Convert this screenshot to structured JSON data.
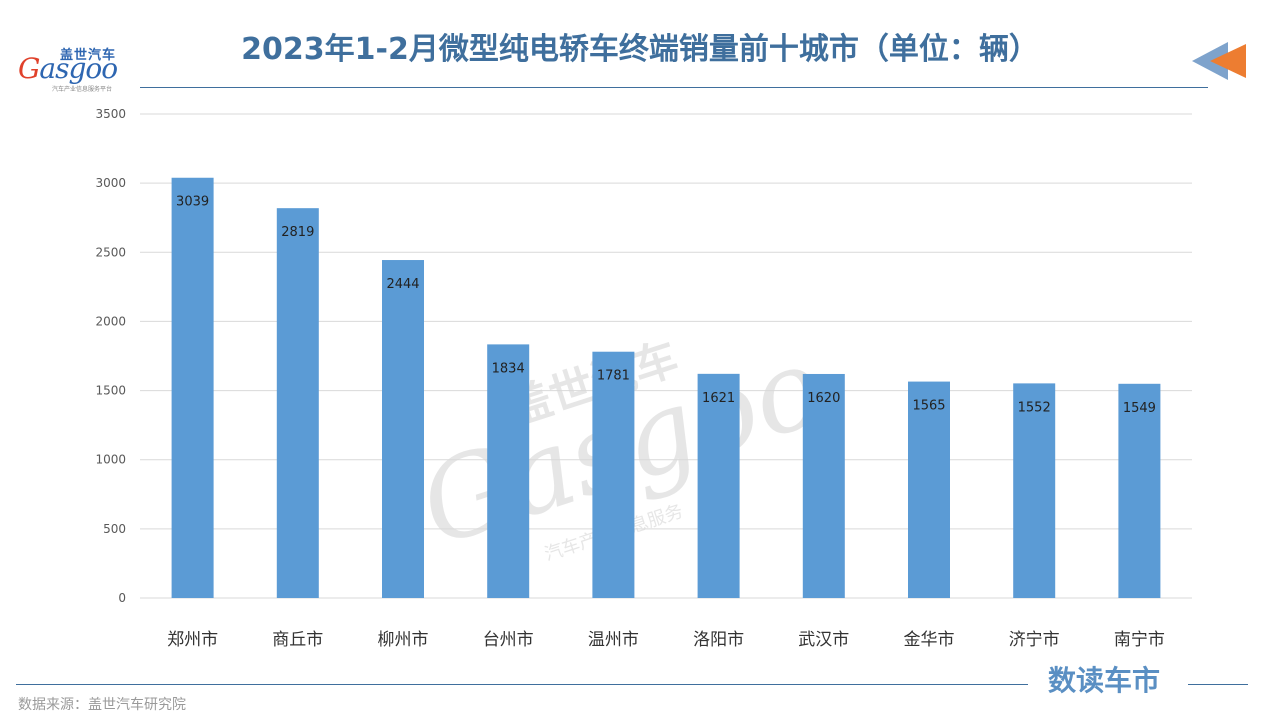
{
  "logo": {
    "name_cn": "盖世汽车",
    "name_en_first": "G",
    "name_en_rest": "asgoo",
    "tagline": "汽车产业信息服务平台"
  },
  "header": {
    "title": "2023年1-2月微型纯电轿车终端销量前十城市（单位：辆）"
  },
  "colors": {
    "bar": "#5b9bd5",
    "title": "#3f6f9d",
    "grid": "#d9d9d9",
    "arrow_blue": "#7ea3cc",
    "arrow_orange": "#ed7d31"
  },
  "watermark": {
    "cn": "盖世汽车",
    "en": "Gasgoo",
    "sub": "汽车产业信息服务"
  },
  "footer": {
    "brand": "数读车市",
    "source": "数据来源：盖世汽车研究院"
  },
  "chart_data": {
    "type": "bar",
    "title": "2023年1-2月微型纯电轿车终端销量前十城市（单位：辆）",
    "xlabel": "",
    "ylabel": "",
    "categories": [
      "郑州市",
      "商丘市",
      "柳州市",
      "台州市",
      "温州市",
      "洛阳市",
      "武汉市",
      "金华市",
      "济宁市",
      "南宁市"
    ],
    "values": [
      3039,
      2819,
      2444,
      1834,
      1781,
      1621,
      1620,
      1565,
      1552,
      1549
    ],
    "ylim": [
      0,
      3500
    ],
    "yticks": [
      0,
      500,
      1000,
      1500,
      2000,
      2500,
      3000,
      3500
    ],
    "grid": true,
    "legend": "none",
    "data_labels": true
  }
}
